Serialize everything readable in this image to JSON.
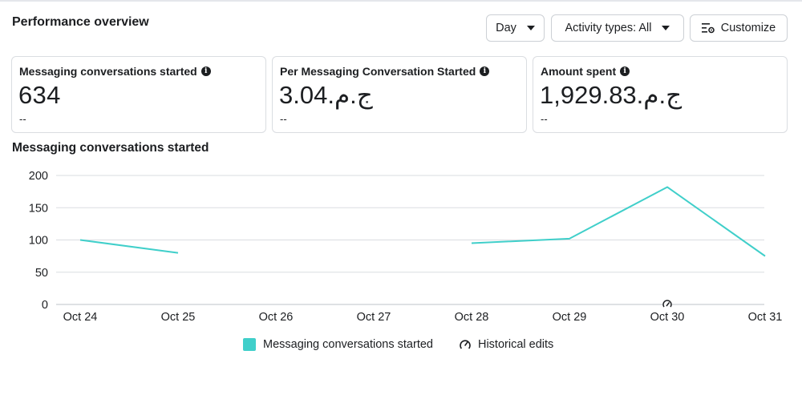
{
  "header": {
    "title": "Performance overview",
    "day_label": "Day",
    "activity_label": "Activity types: All",
    "customize_label": "Customize"
  },
  "cards": [
    {
      "label": "Messaging conversations started",
      "value": "634",
      "delta": "--"
    },
    {
      "label": "Per Messaging Conversation Started",
      "value": "ج.م.3.04",
      "delta": "--"
    },
    {
      "label": "Amount spent",
      "value": "ج.م.1,929.83",
      "delta": "--"
    }
  ],
  "chart_title": "Messaging conversations started",
  "legend": {
    "series_label": "Messaging conversations started",
    "edits_label": "Historical edits"
  },
  "colors": {
    "series": "#40cfca",
    "grid": "#dadde1",
    "text": "#1c1e21"
  },
  "icons": {
    "info": "info-icon",
    "customize": "sliders-icon",
    "historical_edits": "gauge-edit-icon",
    "dropdown": "caret-down-icon"
  },
  "chart_data": {
    "type": "line",
    "title": "Messaging conversations started",
    "categories": [
      "Oct 24",
      "Oct 25",
      "Oct 26",
      "Oct 27",
      "Oct 28",
      "Oct 29",
      "Oct 30",
      "Oct 31"
    ],
    "series": [
      {
        "name": "Messaging conversations started",
        "values": [
          100,
          80,
          null,
          null,
          95,
          102,
          182,
          75
        ]
      }
    ],
    "yticks": [
      0,
      50,
      100,
      150,
      200
    ],
    "ylim": [
      0,
      200
    ],
    "grid": true,
    "legend": "bottom",
    "historical_edit_markers": [
      "Oct 30"
    ]
  }
}
